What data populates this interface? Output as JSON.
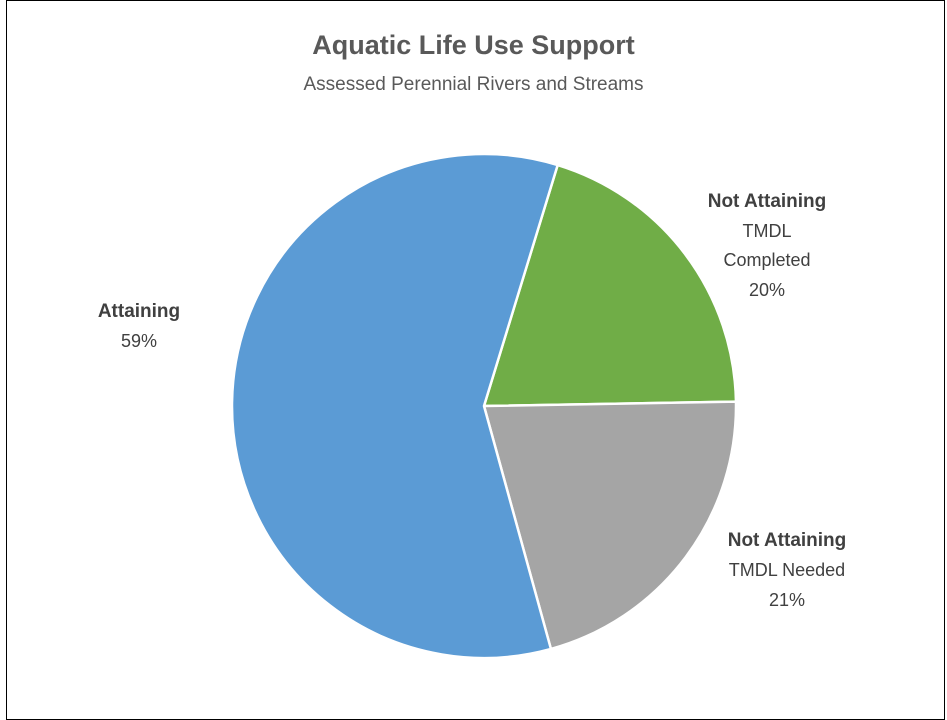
{
  "chart_data": {
    "type": "pie",
    "title": "Aquatic Life Use Support",
    "subtitle": "Assessed Perennial Rivers and Streams",
    "slices": [
      {
        "label": "Attaining",
        "sublabel": "",
        "value_label": "59%",
        "value": 59,
        "color": "#5b9bd5"
      },
      {
        "label": "Not Attaining",
        "sublabel": "TMDL Completed",
        "value_label": "20%",
        "value": 20,
        "color": "#70ad47"
      },
      {
        "label": "Not Attaining",
        "sublabel": "TMDL Needed",
        "value_label": "21%",
        "value": 21,
        "color": "#a5a5a5"
      }
    ]
  }
}
